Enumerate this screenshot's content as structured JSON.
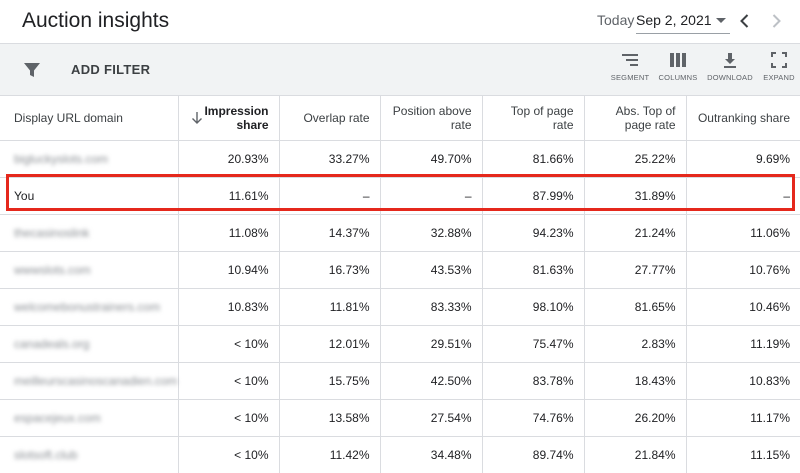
{
  "header": {
    "title": "Auction insights",
    "today_label": "Today",
    "date_value": "Sep 2, 2021"
  },
  "toolbar": {
    "add_filter_label": "ADD FILTER",
    "segment_label": "SEGMENT",
    "columns_label": "COLUMNS",
    "download_label": "DOWNLOAD",
    "expand_label": "EXPAND"
  },
  "table": {
    "columns": [
      "Display URL domain",
      "Impression share",
      "Overlap rate",
      "Position above rate",
      "Top of page rate",
      "Abs. Top of page rate",
      "Outranking share"
    ],
    "rows": [
      {
        "domain": "bigluckyslots.com",
        "impression_share": "20.93%",
        "overlap_rate": "33.27%",
        "position_above_rate": "49.70%",
        "top_of_page_rate": "81.66%",
        "abs_top_rate": "25.22%",
        "outranking_share": "9.69%"
      },
      {
        "domain": "You",
        "impression_share": "11.61%",
        "overlap_rate": "–",
        "position_above_rate": "–",
        "top_of_page_rate": "87.99%",
        "abs_top_rate": "31.89%",
        "outranking_share": "–"
      },
      {
        "domain": "thecasinoslink",
        "impression_share": "11.08%",
        "overlap_rate": "14.37%",
        "position_above_rate": "32.88%",
        "top_of_page_rate": "94.23%",
        "abs_top_rate": "21.24%",
        "outranking_share": "11.06%"
      },
      {
        "domain": "wwwslots.com",
        "impression_share": "10.94%",
        "overlap_rate": "16.73%",
        "position_above_rate": "43.53%",
        "top_of_page_rate": "81.63%",
        "abs_top_rate": "27.77%",
        "outranking_share": "10.76%"
      },
      {
        "domain": "welcomebonustrainers.com",
        "impression_share": "10.83%",
        "overlap_rate": "11.81%",
        "position_above_rate": "83.33%",
        "top_of_page_rate": "98.10%",
        "abs_top_rate": "81.65%",
        "outranking_share": "10.46%"
      },
      {
        "domain": "canadeals.org",
        "impression_share": "< 10%",
        "overlap_rate": "12.01%",
        "position_above_rate": "29.51%",
        "top_of_page_rate": "75.47%",
        "abs_top_rate": "2.83%",
        "outranking_share": "11.19%"
      },
      {
        "domain": "meilleurscasinoscanadien.com",
        "impression_share": "< 10%",
        "overlap_rate": "15.75%",
        "position_above_rate": "42.50%",
        "top_of_page_rate": "83.78%",
        "abs_top_rate": "18.43%",
        "outranking_share": "10.83%"
      },
      {
        "domain": "espacejeux.com",
        "impression_share": "< 10%",
        "overlap_rate": "13.58%",
        "position_above_rate": "27.54%",
        "top_of_page_rate": "74.76%",
        "abs_top_rate": "26.20%",
        "outranking_share": "11.17%"
      },
      {
        "domain": "slotsoft.club",
        "impression_share": "< 10%",
        "overlap_rate": "11.42%",
        "position_above_rate": "34.48%",
        "top_of_page_rate": "89.74%",
        "abs_top_rate": "21.84%",
        "outranking_share": "11.15%"
      }
    ]
  },
  "colors": {
    "highlight": "#e5281c",
    "toolbar_bg": "#f1f3f4",
    "border": "#dadce0"
  },
  "icons": {
    "filter": "filter-icon",
    "segment": "segment-icon",
    "columns": "columns-icon",
    "download": "download-icon",
    "expand": "expand-icon",
    "prev": "chevron-left-icon",
    "next": "chevron-right-icon",
    "sort": "arrow-down-icon"
  }
}
